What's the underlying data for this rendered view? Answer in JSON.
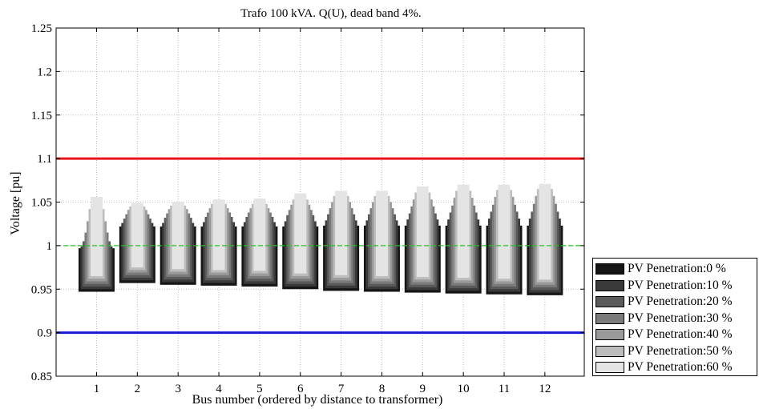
{
  "chart_data": {
    "type": "bar",
    "title": "Trafo 100 kVA. Q(U), dead band 4%.",
    "xlabel": "Bus number (ordered by distance to transformer)",
    "ylabel": "Voltage [pu]",
    "ylim": [
      0.85,
      1.25
    ],
    "yticks": [
      "0.85",
      "0.9",
      "0.95",
      "1",
      "1.05",
      "1.1",
      "1.15",
      "1.2",
      "1.25"
    ],
    "categories": [
      "1",
      "2",
      "3",
      "4",
      "5",
      "6",
      "7",
      "8",
      "9",
      "10",
      "11",
      "12"
    ],
    "grid": true,
    "legend_position": "outside-right",
    "reference_lines": [
      {
        "value": 1.1,
        "color": "#e8141a",
        "style": "solid"
      },
      {
        "value": 1.0,
        "color": "#22c322",
        "style": "dashed"
      },
      {
        "value": 0.9,
        "color": "#1a1ad6",
        "style": "solid"
      }
    ],
    "series": [
      {
        "name": "PV Penetration:0 %",
        "color": "#161616",
        "low": [
          0.947,
          0.957,
          0.955,
          0.954,
          0.953,
          0.95,
          0.948,
          0.947,
          0.946,
          0.945,
          0.944,
          0.943
        ],
        "high": [
          0.997,
          1.022,
          1.022,
          1.022,
          1.022,
          1.022,
          1.023,
          1.023,
          1.023,
          1.023,
          1.023,
          1.023
        ]
      },
      {
        "name": "PV Penetration:10 %",
        "color": "#3a3a3a",
        "low": [
          0.95,
          0.96,
          0.958,
          0.957,
          0.956,
          0.953,
          0.951,
          0.95,
          0.949,
          0.948,
          0.947,
          0.946
        ],
        "high": [
          0.999,
          1.026,
          1.026,
          1.027,
          1.027,
          1.028,
          1.029,
          1.029,
          1.03,
          1.03,
          1.031,
          1.031
        ]
      },
      {
        "name": "PV Penetration:20 %",
        "color": "#5a5a5a",
        "low": [
          0.953,
          0.963,
          0.961,
          0.96,
          0.959,
          0.956,
          0.954,
          0.953,
          0.952,
          0.951,
          0.95,
          0.949
        ],
        "high": [
          1.005,
          1.031,
          1.032,
          1.033,
          1.033,
          1.035,
          1.036,
          1.036,
          1.037,
          1.038,
          1.039,
          1.039
        ]
      },
      {
        "name": "PV Penetration:30 %",
        "color": "#7a7a7a",
        "low": [
          0.956,
          0.966,
          0.964,
          0.963,
          0.962,
          0.959,
          0.957,
          0.956,
          0.955,
          0.954,
          0.953,
          0.952
        ],
        "high": [
          1.015,
          1.036,
          1.037,
          1.038,
          1.038,
          1.041,
          1.043,
          1.043,
          1.045,
          1.046,
          1.047,
          1.048
        ]
      },
      {
        "name": "PV Penetration:40 %",
        "color": "#9a9a9a",
        "low": [
          0.959,
          0.969,
          0.967,
          0.966,
          0.965,
          0.962,
          0.96,
          0.959,
          0.958,
          0.957,
          0.956,
          0.955
        ],
        "high": [
          1.028,
          1.041,
          1.042,
          1.043,
          1.043,
          1.047,
          1.05,
          1.05,
          1.053,
          1.055,
          1.056,
          1.057
        ]
      },
      {
        "name": "PV Penetration:50 %",
        "color": "#bdbdbd",
        "low": [
          0.962,
          0.972,
          0.97,
          0.969,
          0.968,
          0.965,
          0.963,
          0.962,
          0.961,
          0.96,
          0.959,
          0.958
        ],
        "high": [
          1.042,
          1.045,
          1.046,
          1.048,
          1.048,
          1.053,
          1.057,
          1.057,
          1.061,
          1.063,
          1.064,
          1.065
        ]
      },
      {
        "name": "PV Penetration:60 %",
        "color": "#e4e4e4",
        "low": [
          0.965,
          0.975,
          0.973,
          0.972,
          0.971,
          0.968,
          0.966,
          0.965,
          0.964,
          0.963,
          0.962,
          0.961
        ],
        "high": [
          1.056,
          1.049,
          1.05,
          1.053,
          1.054,
          1.06,
          1.063,
          1.063,
          1.068,
          1.07,
          1.07,
          1.071
        ]
      }
    ]
  }
}
